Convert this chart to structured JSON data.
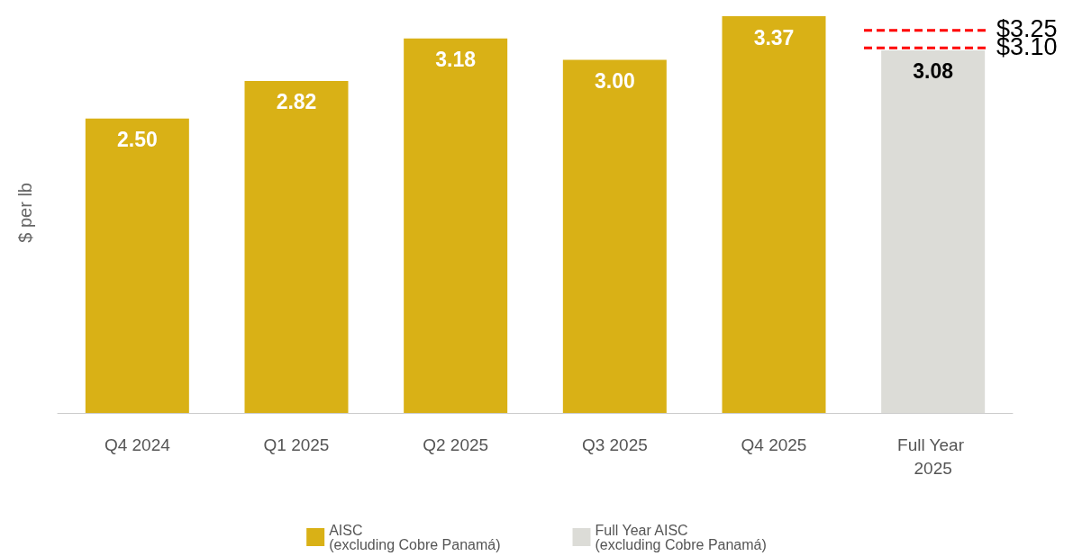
{
  "chart_data": {
    "type": "bar",
    "ylabel": "$ per lb",
    "categories": [
      "Q4 2024",
      "Q1 2025",
      "Q2 2025",
      "Q3 2025",
      "Q4 2025",
      "Full Year 2025"
    ],
    "series": [
      {
        "name": "AISC\n(excluding Cobre Panamá)",
        "color": "#d9b116",
        "values": [
          2.5,
          2.82,
          3.18,
          3.0,
          3.37,
          null
        ],
        "value_labels": [
          "2.50",
          "2.82",
          "3.18",
          "3.00",
          "3.37",
          null
        ]
      },
      {
        "name": "Full Year AISC\n(excluding Cobre Panamá)",
        "color": "#dcdcd7",
        "values": [
          null,
          null,
          null,
          null,
          null,
          3.08
        ],
        "value_labels": [
          null,
          null,
          null,
          null,
          null,
          "3.08"
        ]
      }
    ],
    "grid": false,
    "legend": "bottom",
    "ref_lines": [
      {
        "axis": "y",
        "value": 3.25,
        "label": "$3.25",
        "color": "#ff0000",
        "line_style": "dashed"
      },
      {
        "axis": "y",
        "value": 3.1,
        "label": "$3.10",
        "color": "#ff0000",
        "line_style": "dashed"
      }
    ]
  }
}
